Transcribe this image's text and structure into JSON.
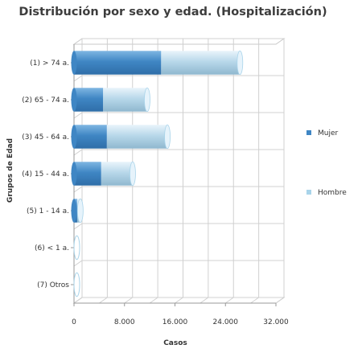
{
  "chart_data": {
    "type": "bar",
    "orientation": "horizontal",
    "stacked": true,
    "three_d": true,
    "title": "Distribución por sexo y edad. (Hospitalización)",
    "xlabel": "Casos",
    "ylabel": "Grupos de Edad",
    "categories": [
      "(1) > 74 a.",
      "(2) 65 - 74 a.",
      "(3) 45 - 64 a.",
      "(4) 15 - 44 a.",
      "(5) 1 - 14 a.",
      "(6) < 1 a.",
      "(7) Otros"
    ],
    "series": [
      {
        "name": "Mujer",
        "color": "#3f86c4",
        "values": [
          13800,
          4600,
          5200,
          4300,
          500,
          0,
          0
        ]
      },
      {
        "name": "Hombre",
        "color": "#a9d4ea",
        "values": [
          12500,
          7000,
          9600,
          5000,
          500,
          0,
          0
        ]
      }
    ],
    "xlim": [
      0,
      32000
    ],
    "xticks": [
      0,
      8000,
      16000,
      24000,
      32000
    ],
    "xtick_labels": [
      "0",
      "8.000",
      "16.000",
      "24.000",
      "32.000"
    ],
    "grid": true,
    "legend_position": "right"
  }
}
